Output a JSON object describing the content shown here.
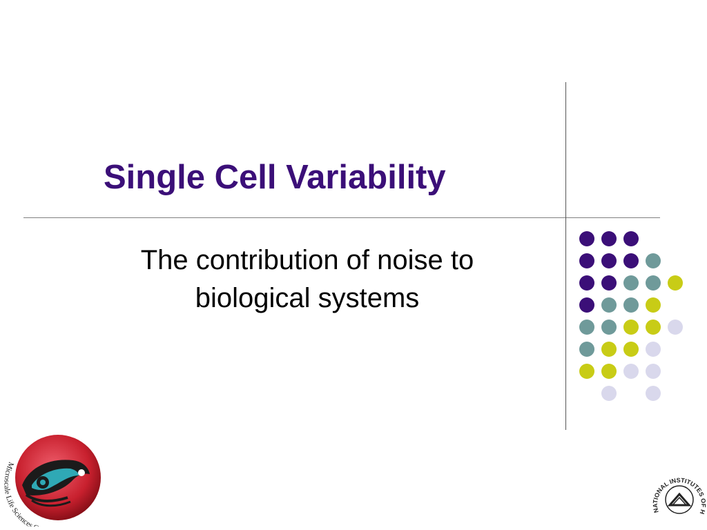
{
  "slide": {
    "title": "Single Cell Variability",
    "subtitle": "The contribution of noise to biological systems"
  },
  "decoration": {
    "colors": {
      "purple": "#3b0f78",
      "teal": "#6f9a9a",
      "yellow": "#c8cc16",
      "lavender": "#d9d8ec"
    },
    "dot_grid": [
      [
        "purple",
        "purple",
        "purple",
        null,
        null
      ],
      [
        "purple",
        "purple",
        "purple",
        "teal",
        null
      ],
      [
        "purple",
        "purple",
        "teal",
        "teal",
        "yellow"
      ],
      [
        "purple",
        "teal",
        "teal",
        "yellow",
        null
      ],
      [
        "teal",
        "teal",
        "yellow",
        "yellow",
        "lavender"
      ],
      [
        "teal",
        "yellow",
        "yellow",
        "lavender",
        null
      ],
      [
        "yellow",
        "yellow",
        "lavender",
        "lavender",
        null
      ],
      [
        null,
        "lavender",
        null,
        "lavender",
        null
      ]
    ]
  },
  "logos": {
    "left": {
      "text": "Microscale Life Sciences Center",
      "icon": "salmon-emblem-icon"
    },
    "right": {
      "text": "NATIONAL INSTITUTES OF HEALTH",
      "icon": "nih-emblem-icon"
    }
  }
}
